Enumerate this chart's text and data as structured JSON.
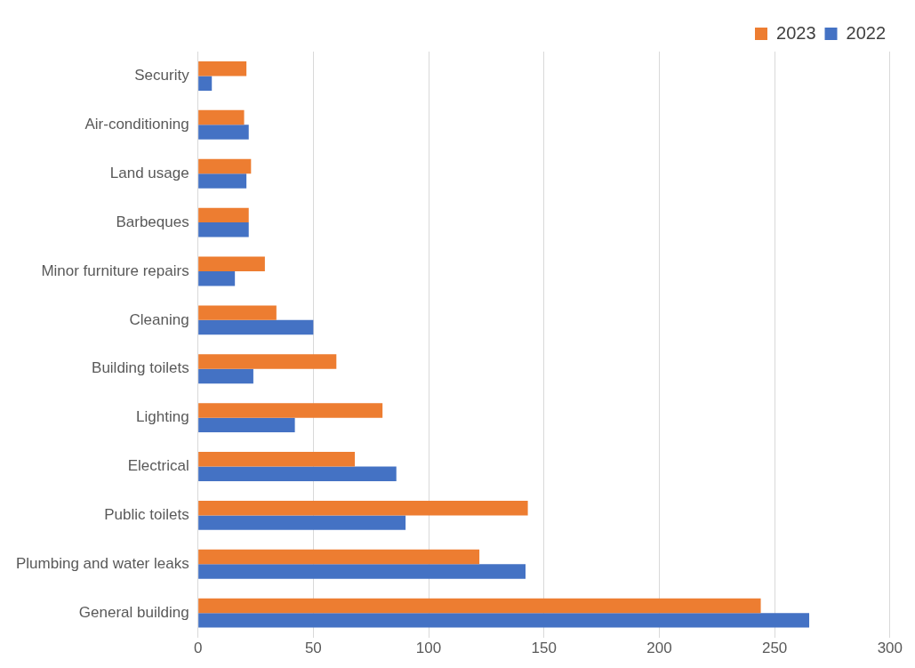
{
  "chart_data": {
    "type": "bar",
    "orientation": "horizontal",
    "categories": [
      "Security",
      "Air-conditioning",
      "Land usage",
      "Barbeques",
      "Minor furniture repairs",
      "Cleaning",
      "Building toilets",
      "Lighting",
      "Electrical",
      "Public toilets",
      "Plumbing and water leaks",
      "General building"
    ],
    "series": [
      {
        "name": "2023",
        "color": "#ed7d31",
        "values": [
          21,
          20,
          23,
          22,
          29,
          34,
          60,
          80,
          68,
          143,
          122,
          244
        ]
      },
      {
        "name": "2022",
        "color": "#4472c4",
        "values": [
          6,
          22,
          21,
          22,
          16,
          50,
          24,
          42,
          86,
          90,
          142,
          265
        ]
      }
    ],
    "xlim": [
      0,
      300
    ],
    "xticks": [
      0,
      50,
      100,
      150,
      200,
      250,
      300
    ],
    "grid": "x",
    "legend": "top right"
  }
}
